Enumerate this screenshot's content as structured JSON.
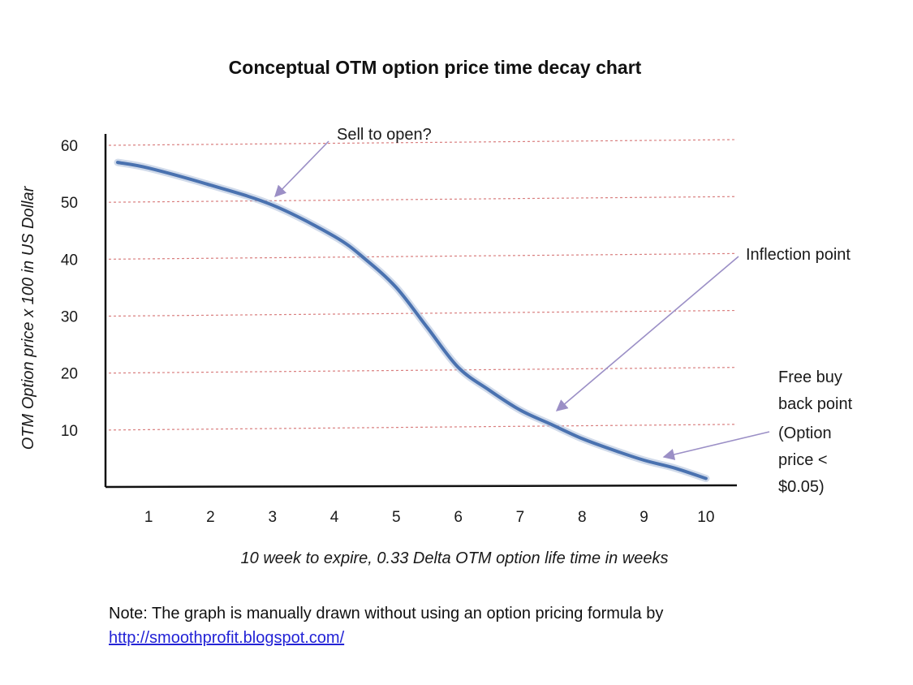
{
  "chart_data": {
    "type": "line",
    "title": "Conceptual OTM option price time decay chart",
    "xlabel": "10 week to expire, 0.33 Delta OTM option life time in weeks",
    "ylabel": "OTM Option price x 100 in US Dollar",
    "x_ticks": [
      "1",
      "2",
      "3",
      "4",
      "5",
      "6",
      "7",
      "8",
      "9",
      "10"
    ],
    "y_ticks": [
      "10",
      "20",
      "30",
      "40",
      "50",
      "60"
    ],
    "xlim": [
      0.5,
      10.5
    ],
    "ylim": [
      0,
      62
    ],
    "grid": "horizontal dashed",
    "series": [
      {
        "name": "OTM option price",
        "color": "#4a72b0",
        "x": [
          0.5,
          1,
          2,
          3,
          4,
          4.5,
          5,
          5.5,
          6,
          6.5,
          7,
          7.5,
          8,
          8.5,
          9,
          9.5,
          10
        ],
        "y": [
          57,
          56,
          53,
          49.5,
          44,
          40,
          35,
          28,
          21,
          17,
          13.5,
          11,
          8.5,
          6.5,
          4.7,
          3.3,
          1.5
        ]
      }
    ],
    "annotations": [
      {
        "id": "sell",
        "lines": [
          "Sell to open?"
        ],
        "point": [
          3,
          50
        ]
      },
      {
        "id": "inflection",
        "lines": [
          "Inflection point"
        ],
        "point": [
          7.5,
          13
        ]
      },
      {
        "id": "buyback",
        "lines": [
          "Free buy",
          "back point",
          "(Option",
          "price <",
          "$0.05)"
        ],
        "point": [
          9.2,
          5
        ]
      }
    ]
  },
  "note": {
    "text": "Note: The graph is manually drawn without using an option pricing formula by",
    "link": "http://smoothprofit.blogspot.com/"
  },
  "colors": {
    "curve": "#4a72b0",
    "grid": "#d97f7f",
    "arrow": "#9b8fc6",
    "axis": "#111111",
    "link": "#2323d6"
  }
}
